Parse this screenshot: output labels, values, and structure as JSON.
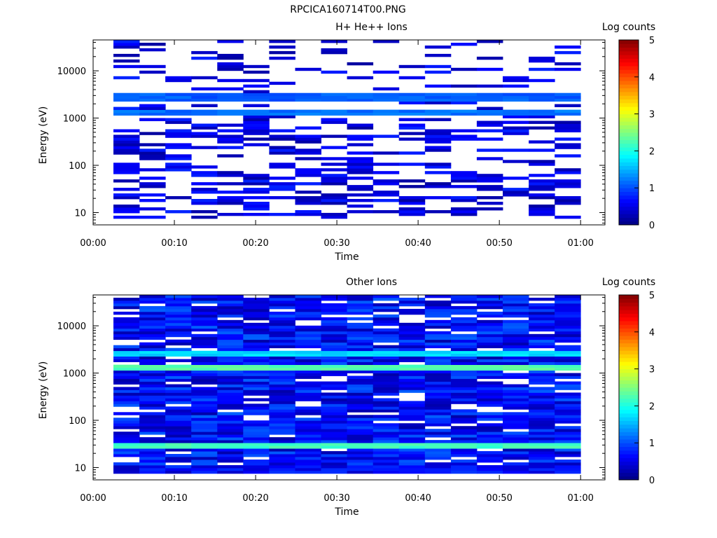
{
  "figure": {
    "title": "RPCICA160714T00.PNG"
  },
  "chart_data": [
    {
      "type": "heatmap",
      "title": "H+ He++ Ions",
      "xlabel": "Time",
      "ylabel": "Energy (eV)",
      "x_ticks": [
        "00:00",
        "00:10",
        "00:20",
        "00:30",
        "00:40",
        "00:50",
        "01:00"
      ],
      "y_ticks": [
        "10",
        "100",
        "1000",
        "10000"
      ],
      "y_scale": "log",
      "xlim": [
        "00:00",
        "01:03"
      ],
      "ylim": [
        5.5,
        45000
      ],
      "data_x_range": [
        "00:02.5",
        "01:00"
      ],
      "time_bins": 18,
      "colorbar": {
        "label": "Log counts",
        "range": [
          0,
          5
        ],
        "ticks": [
          "0",
          "1",
          "2",
          "3",
          "4",
          "5"
        ]
      },
      "features": [
        {
          "energy": 1250,
          "level": 1.3,
          "note": "persistent band"
        },
        {
          "energy": 2750,
          "level": 1.2,
          "note": "persistent band"
        }
      ],
      "grid": false
    },
    {
      "type": "heatmap",
      "title": "Other Ions",
      "xlabel": "Time",
      "ylabel": "Energy (eV)",
      "x_ticks": [
        "00:00",
        "00:10",
        "00:20",
        "00:30",
        "00:40",
        "00:50",
        "01:00"
      ],
      "y_ticks": [
        "10",
        "100",
        "1000",
        "10000"
      ],
      "y_scale": "log",
      "xlim": [
        "00:00",
        "01:03"
      ],
      "ylim": [
        5.5,
        45000
      ],
      "data_x_range": [
        "00:02.5",
        "01:00"
      ],
      "time_bins": 18,
      "colorbar": {
        "label": "Log counts",
        "range": [
          0,
          5
        ],
        "ticks": [
          "0",
          "1",
          "2",
          "3",
          "4",
          "5"
        ]
      },
      "features": [
        {
          "energy": 1300,
          "level": 2.4,
          "note": "persistent band"
        },
        {
          "energy": 2650,
          "level": 1.8,
          "note": "persistent band"
        },
        {
          "energy": 28,
          "level": 2.3,
          "note": "persistent band"
        }
      ],
      "grid": false
    }
  ]
}
